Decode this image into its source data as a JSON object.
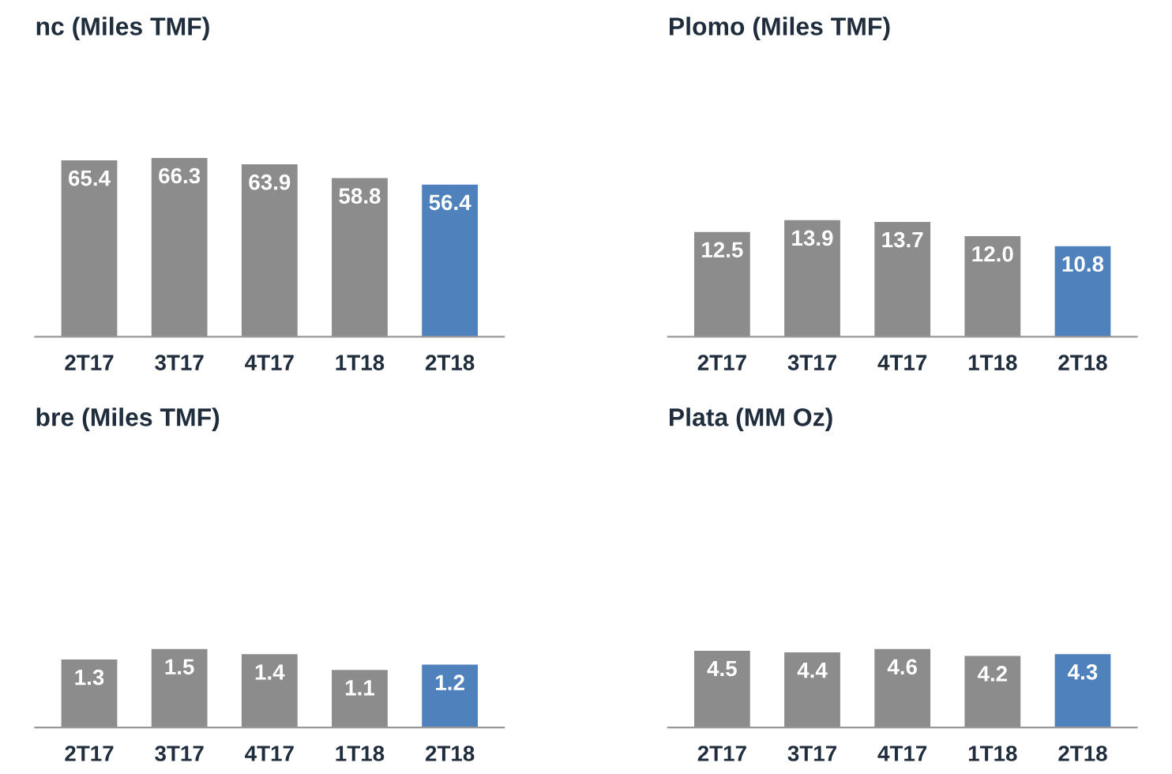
{
  "chart_data": [
    {
      "type": "bar",
      "title": "nc (Miles TMF)",
      "categories": [
        "2T17",
        "3T17",
        "4T17",
        "1T18",
        "2T18"
      ],
      "values": [
        65.4,
        66.3,
        63.9,
        58.8,
        56.4
      ],
      "colors": [
        "#8c8c8c",
        "#8c8c8c",
        "#8c8c8c",
        "#8c8c8c",
        "#4f81bd"
      ],
      "value_labels": [
        "65.4",
        "66.3",
        "63.9",
        "58.8",
        "56.4"
      ],
      "tick_labels": "x"
    },
    {
      "type": "bar",
      "title": "Plomo (Miles TMF)",
      "categories": [
        "2T17",
        "3T17",
        "4T17",
        "1T18",
        "2T18"
      ],
      "values": [
        12.5,
        13.9,
        13.7,
        12.0,
        10.8
      ],
      "colors": [
        "#8c8c8c",
        "#8c8c8c",
        "#8c8c8c",
        "#8c8c8c",
        "#4f81bd"
      ],
      "value_labels": [
        "12.5",
        "13.9",
        "13.7",
        "12.0",
        "10.8"
      ],
      "tick_labels": "x"
    },
    {
      "type": "bar",
      "title": "bre (Miles TMF)",
      "categories": [
        "2T17",
        "3T17",
        "4T17",
        "1T18",
        "2T18"
      ],
      "values": [
        1.3,
        1.5,
        1.4,
        1.1,
        1.2
      ],
      "colors": [
        "#8c8c8c",
        "#8c8c8c",
        "#8c8c8c",
        "#8c8c8c",
        "#4f81bd"
      ],
      "value_labels": [
        "1.3",
        "1.5",
        "1.4",
        "1.1",
        "1.2"
      ],
      "tick_labels": "x"
    },
    {
      "type": "bar",
      "title": "Plata (MM Oz)",
      "categories": [
        "2T17",
        "3T17",
        "4T17",
        "1T18",
        "2T18"
      ],
      "values": [
        4.5,
        4.4,
        4.6,
        4.2,
        4.3
      ],
      "colors": [
        "#8c8c8c",
        "#8c8c8c",
        "#8c8c8c",
        "#8c8c8c",
        "#4f81bd"
      ],
      "value_labels": [
        "4.5",
        "4.4",
        "4.6",
        "4.2",
        "4.3"
      ],
      "tick_labels": "x"
    }
  ]
}
